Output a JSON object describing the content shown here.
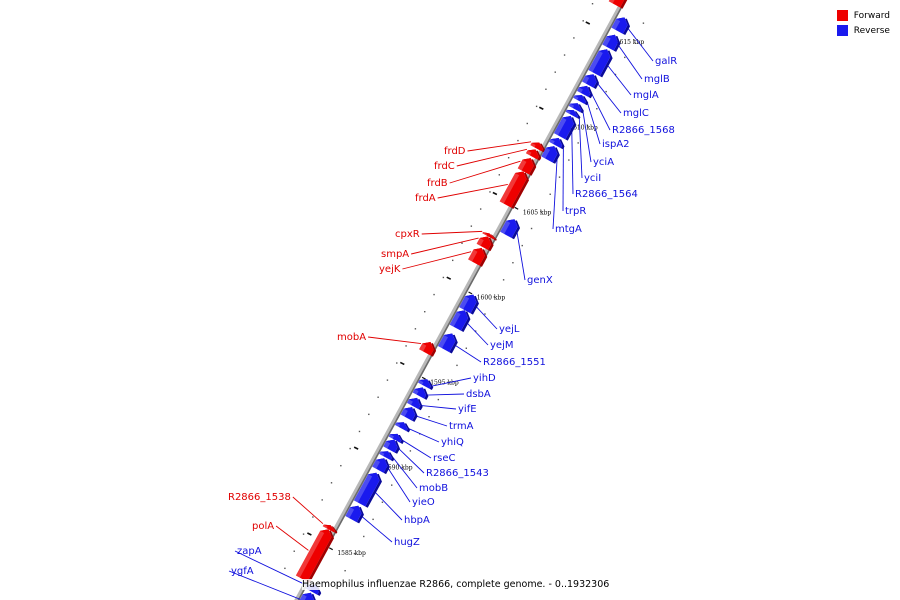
{
  "caption": "Haemophilus influenzae R2866, complete genome. - 0..1932306",
  "legend": {
    "forward_label": "Forward",
    "reverse_label": "Reverse",
    "forward_color": "#ee0000",
    "reverse_color": "#1a1aee"
  },
  "ticks": [
    {
      "label": "1585 kbp",
      "t": 0.071
    },
    {
      "label": "1590 kbp",
      "t": 0.219
    },
    {
      "label": "1595 kbp",
      "t": 0.365
    },
    {
      "label": "1600 kbp",
      "t": 0.512
    },
    {
      "label": "1605 kbp",
      "t": 0.658
    },
    {
      "label": "1610 kbp",
      "t": 0.805
    },
    {
      "label": "1615 kbp",
      "t": 0.952
    }
  ],
  "genes": [
    {
      "name": "ygfA",
      "strand": "reverse",
      "start": -0.03,
      "end": -0.002
    },
    {
      "name": "zapA",
      "strand": "reverse",
      "start": 0.0,
      "end": 0.012
    },
    {
      "name": "polA",
      "strand": "forward",
      "start": 0.01,
      "end": 0.095
    },
    {
      "name": "R2866_1538",
      "strand": "forward",
      "start": 0.095,
      "end": 0.102
    },
    {
      "name": "hugZ",
      "strand": "reverse",
      "start": 0.125,
      "end": 0.148
    },
    {
      "name": "hbpA",
      "strand": "reverse",
      "start": 0.152,
      "end": 0.205
    },
    {
      "name": "yieO",
      "strand": "reverse",
      "start": 0.21,
      "end": 0.23
    },
    {
      "name": "mobB",
      "strand": "reverse",
      "start": 0.232,
      "end": 0.242
    },
    {
      "name": "R2866_1543",
      "strand": "reverse",
      "start": 0.245,
      "end": 0.262
    },
    {
      "name": "rseC",
      "strand": "reverse",
      "start": 0.262,
      "end": 0.272
    },
    {
      "name": "yhiQ",
      "strand": "reverse",
      "start": 0.282,
      "end": 0.292
    },
    {
      "name": "trmA",
      "strand": "reverse",
      "start": 0.3,
      "end": 0.318
    },
    {
      "name": "yifE",
      "strand": "reverse",
      "start": 0.32,
      "end": 0.334
    },
    {
      "name": "dsbA",
      "strand": "reverse",
      "start": 0.338,
      "end": 0.352
    },
    {
      "name": "yihD",
      "strand": "reverse",
      "start": 0.355,
      "end": 0.366
    },
    {
      "name": "mobA",
      "strand": "forward",
      "start": 0.4,
      "end": 0.418
    },
    {
      "name": "R2866_1551",
      "strand": "reverse",
      "start": 0.418,
      "end": 0.445
    },
    {
      "name": "yejM",
      "strand": "reverse",
      "start": 0.455,
      "end": 0.485
    },
    {
      "name": "yejL",
      "strand": "reverse",
      "start": 0.485,
      "end": 0.512
    },
    {
      "name": "yejK",
      "strand": "forward",
      "start": 0.555,
      "end": 0.58
    },
    {
      "name": "smpA",
      "strand": "forward",
      "start": 0.582,
      "end": 0.6
    },
    {
      "name": "cpxR",
      "strand": "forward",
      "start": 0.6,
      "end": 0.605
    },
    {
      "name": "genX",
      "strand": "reverse",
      "start": 0.615,
      "end": 0.642
    },
    {
      "name": "frdA",
      "strand": "forward",
      "start": 0.655,
      "end": 0.712
    },
    {
      "name": "frdB",
      "strand": "forward",
      "start": 0.712,
      "end": 0.735
    },
    {
      "name": "frdC",
      "strand": "forward",
      "start": 0.738,
      "end": 0.75
    },
    {
      "name": "frdD",
      "strand": "forward",
      "start": 0.752,
      "end": 0.762
    },
    {
      "name": "mtgA",
      "strand": "reverse",
      "start": 0.745,
      "end": 0.768
    },
    {
      "name": "trpR",
      "strand": "reverse",
      "start": 0.77,
      "end": 0.782
    },
    {
      "name": "R2866_1564",
      "strand": "reverse",
      "start": 0.785,
      "end": 0.82
    },
    {
      "name": "yciI",
      "strand": "reverse",
      "start": 0.822,
      "end": 0.83
    },
    {
      "name": "yciA",
      "strand": "reverse",
      "start": 0.832,
      "end": 0.842
    },
    {
      "name": "ispA2",
      "strand": "reverse",
      "start": 0.846,
      "end": 0.856
    },
    {
      "name": "R2866_1568",
      "strand": "reverse",
      "start": 0.858,
      "end": 0.872
    },
    {
      "name": "mglC",
      "strand": "reverse",
      "start": 0.874,
      "end": 0.892
    },
    {
      "name": "mglA",
      "strand": "reverse",
      "start": 0.894,
      "end": 0.935
    },
    {
      "name": "mglB",
      "strand": "reverse",
      "start": 0.938,
      "end": 0.96
    },
    {
      "name": "galR",
      "strand": "reverse",
      "start": 0.967,
      "end": 0.99
    },
    {
      "name": "",
      "strand": "forward",
      "start": 1.0,
      "end": 1.03
    }
  ]
}
